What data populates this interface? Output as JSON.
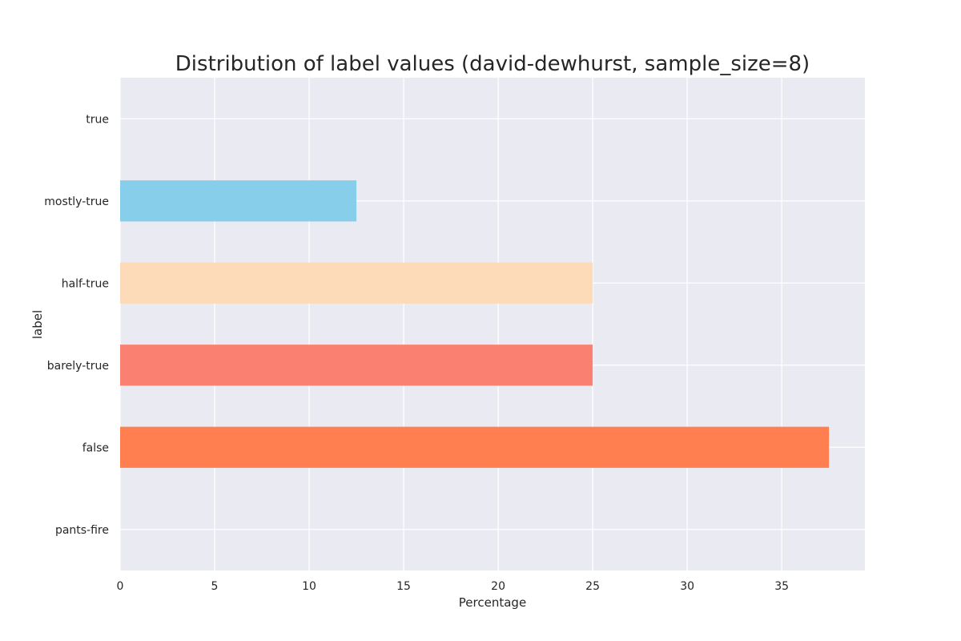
{
  "chart_data": {
    "type": "bar",
    "orientation": "horizontal",
    "title": "Distribution of label values (david-dewhurst, sample_size=8)",
    "xlabel": "Percentage",
    "ylabel": "label",
    "categories": [
      "true",
      "mostly-true",
      "half-true",
      "barely-true",
      "false",
      "pants-fire"
    ],
    "values": [
      0,
      12.5,
      25,
      25,
      37.5,
      0
    ],
    "colors": [
      "#87CEEB",
      "#87CEEB",
      "#FDDAB8",
      "#FA8072",
      "#FF7F50",
      "#FF7F50"
    ],
    "xlim": [
      0,
      39.4
    ],
    "xticks": [
      0,
      5,
      10,
      15,
      20,
      25,
      30,
      35
    ],
    "grid": true,
    "style": {
      "plot_background": "#EAEAF2",
      "grid_color": "#FFFFFF",
      "text_color": "#262626"
    }
  }
}
